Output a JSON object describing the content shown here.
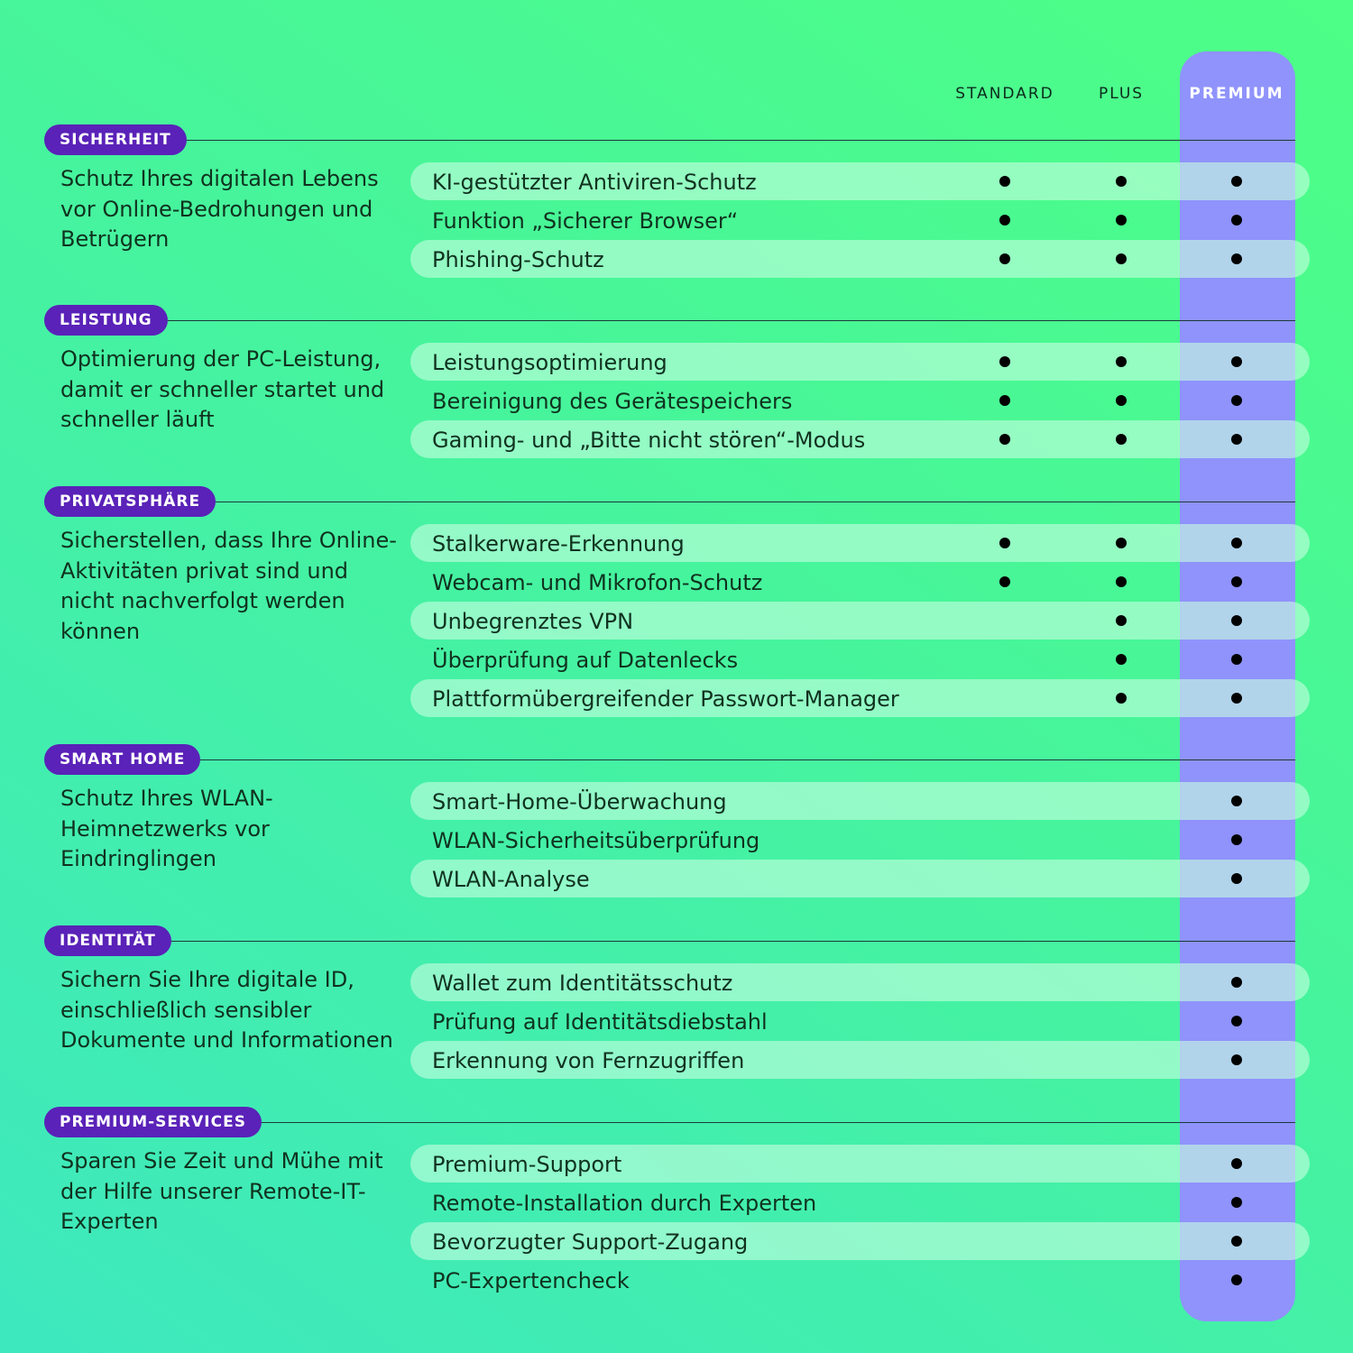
{
  "columns": [
    "STANDARD",
    "PLUS",
    "PREMIUM"
  ],
  "colors": {
    "premium_column": "#8f93fb",
    "section_pill": "#5a22b8",
    "background_top": "#4dff86",
    "background_bottom": "#3ee8bf"
  },
  "sections": [
    {
      "title": "SICHERHEIT",
      "description": "Schutz Ihres digitalen Lebens vor Online-Bedrohungen und Betrügern",
      "features": [
        {
          "label": "KI-gestützter Antiviren-Schutz",
          "included": [
            true,
            true,
            true
          ]
        },
        {
          "label": "Funktion „Sicherer Browser“",
          "included": [
            true,
            true,
            true
          ]
        },
        {
          "label": "Phishing-Schutz",
          "included": [
            true,
            true,
            true
          ]
        }
      ]
    },
    {
      "title": "LEISTUNG",
      "description": "Optimierung der PC-Leistung, damit er schneller startet und schneller läuft",
      "features": [
        {
          "label": "Leistungsoptimierung",
          "included": [
            true,
            true,
            true
          ]
        },
        {
          "label": "Bereinigung des Gerätespeichers",
          "included": [
            true,
            true,
            true
          ]
        },
        {
          "label": "Gaming- und „Bitte nicht stören“-Modus",
          "included": [
            true,
            true,
            true
          ]
        }
      ]
    },
    {
      "title": "PRIVATSPHÄRE",
      "description": "Sicherstellen, dass Ihre Online-Aktivitäten privat sind und nicht nachverfolgt werden können",
      "features": [
        {
          "label": "Stalkerware-Erkennung",
          "included": [
            true,
            true,
            true
          ]
        },
        {
          "label": "Webcam- und Mikrofon-Schutz",
          "included": [
            true,
            true,
            true
          ]
        },
        {
          "label": "Unbegrenztes VPN",
          "included": [
            false,
            true,
            true
          ]
        },
        {
          "label": "Überprüfung auf Datenlecks",
          "included": [
            false,
            true,
            true
          ]
        },
        {
          "label": "Plattformübergreifender Passwort-Manager",
          "included": [
            false,
            true,
            true
          ]
        }
      ]
    },
    {
      "title": "SMART HOME",
      "description": "Schutz Ihres WLAN-Heimnetzwerks vor Eindringlingen",
      "features": [
        {
          "label": "Smart-Home-Überwachung",
          "included": [
            false,
            false,
            true
          ]
        },
        {
          "label": "WLAN-Sicherheitsüberprüfung",
          "included": [
            false,
            false,
            true
          ]
        },
        {
          "label": "WLAN-Analyse",
          "included": [
            false,
            false,
            true
          ]
        }
      ]
    },
    {
      "title": "IDENTITÄT",
      "description": "Sichern Sie Ihre digitale ID, einschließlich sensibler Dokumente und Informationen",
      "features": [
        {
          "label": "Wallet zum Identitätsschutz",
          "included": [
            false,
            false,
            true
          ]
        },
        {
          "label": "Prüfung auf Identitätsdiebstahl",
          "included": [
            false,
            false,
            true
          ]
        },
        {
          "label": "Erkennung von Fernzugriffen",
          "included": [
            false,
            false,
            true
          ]
        }
      ]
    },
    {
      "title": "PREMIUM-SERVICES",
      "description": "Sparen Sie Zeit und Mühe mit der Hilfe unserer Remote-IT-Experten",
      "features": [
        {
          "label": "Premium-Support",
          "included": [
            false,
            false,
            true
          ]
        },
        {
          "label": "Remote-Installation durch Experten",
          "included": [
            false,
            false,
            true
          ]
        },
        {
          "label": "Bevorzugter Support-Zugang",
          "included": [
            false,
            false,
            true
          ]
        },
        {
          "label": "PC-Expertencheck",
          "included": [
            false,
            false,
            true
          ]
        }
      ]
    }
  ]
}
